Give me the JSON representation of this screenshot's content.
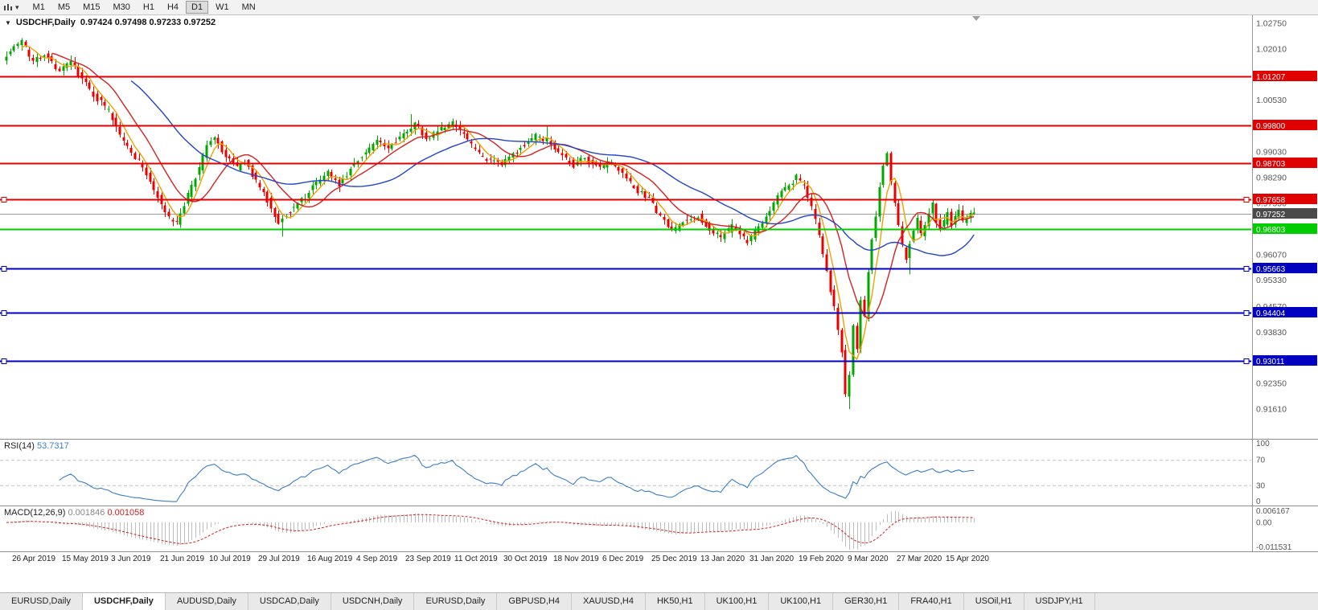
{
  "icons": {
    "symbol_marker": "▼",
    "chart_type_caret": "▾"
  },
  "toolbar": {
    "timeframes": [
      "M1",
      "M5",
      "M15",
      "M30",
      "H1",
      "H4",
      "D1",
      "W1",
      "MN"
    ],
    "active": "D1"
  },
  "chart": {
    "title": "USDCHF,Daily",
    "ohlc": "0.97424 0.97498 0.97233 0.97252",
    "current": {
      "price": 0.97252,
      "label": "0.97252",
      "line_color": "#9a9a9a",
      "badge_color": "#4a4a4a"
    },
    "axis_ticks": [
      "1.02750",
      "1.02010",
      "1.00530",
      "0.99030",
      "0.98290",
      "0.97550",
      "0.96070",
      "0.95330",
      "0.94570",
      "0.93830",
      "0.92350",
      "0.91610"
    ],
    "levels": [
      {
        "price": 1.01207,
        "label": "1.01207",
        "color": "#e00000",
        "width": 2,
        "handles": false
      },
      {
        "price": 0.998,
        "label": "0.99800",
        "color": "#e00000",
        "width": 2,
        "handles": false
      },
      {
        "price": 0.98703,
        "label": "0.98703",
        "color": "#e00000",
        "width": 2,
        "handles": false
      },
      {
        "price": 0.97658,
        "label": "0.97658",
        "color": "#e00000",
        "width": 2,
        "handles": true
      },
      {
        "price": 0.96803,
        "label": "0.96803",
        "color": "#00cc00",
        "width": 2,
        "handles": false
      },
      {
        "price": 0.95663,
        "label": "0.95663",
        "color": "#0000c0",
        "width": 2,
        "handles": true
      },
      {
        "price": 0.94404,
        "label": "0.94404",
        "color": "#0000c0",
        "width": 2,
        "handles": true
      },
      {
        "price": 0.93011,
        "label": "0.93011",
        "color": "#0000c0",
        "width": 2,
        "handles": true
      }
    ],
    "colors": {
      "up": "#00a800",
      "down": "#ea0000"
    },
    "chart_data": {
      "type": "candlestick",
      "symbol": "USDCHF",
      "timeframe": "Daily",
      "candle_count": 257,
      "price_anchors": [
        [
          0,
          1.0175
        ],
        [
          2,
          1.0195
        ],
        [
          5,
          1.0225
        ],
        [
          8,
          1.016
        ],
        [
          11,
          1.019
        ],
        [
          15,
          1.0135
        ],
        [
          18,
          1.016
        ],
        [
          21,
          1.0115
        ],
        [
          24,
          1.007
        ],
        [
          28,
          1.002
        ],
        [
          31,
          0.995
        ],
        [
          34,
          0.9905
        ],
        [
          37,
          0.986
        ],
        [
          41,
          0.9775
        ],
        [
          44,
          0.971
        ],
        [
          46,
          0.9695
        ],
        [
          49,
          0.978
        ],
        [
          52,
          0.9855
        ],
        [
          54,
          0.992
        ],
        [
          56,
          0.9945
        ],
        [
          59,
          0.989
        ],
        [
          62,
          0.9855
        ],
        [
          64,
          0.9875
        ],
        [
          67,
          0.982
        ],
        [
          70,
          0.9765
        ],
        [
          73,
          0.97
        ],
        [
          76,
          0.9735
        ],
        [
          80,
          0.9775
        ],
        [
          83,
          0.9815
        ],
        [
          86,
          0.9845
        ],
        [
          89,
          0.981
        ],
        [
          93,
          0.987
        ],
        [
          96,
          0.9905
        ],
        [
          99,
          0.9935
        ],
        [
          102,
          0.991
        ],
        [
          106,
          0.996
        ],
        [
          109,
          0.9985
        ],
        [
          112,
          0.994
        ],
        [
          115,
          0.9965
        ],
        [
          119,
          0.999
        ],
        [
          122,
          0.995
        ],
        [
          125,
          0.991
        ],
        [
          128,
          0.988
        ],
        [
          132,
          0.9865
        ],
        [
          135,
          0.9895
        ],
        [
          138,
          0.9925
        ],
        [
          141,
          0.995
        ],
        [
          145,
          0.993
        ],
        [
          148,
          0.9895
        ],
        [
          151,
          0.9865
        ],
        [
          154,
          0.9885
        ],
        [
          158,
          0.9855
        ],
        [
          161,
          0.9875
        ],
        [
          164,
          0.9835
        ],
        [
          167,
          0.98
        ],
        [
          171,
          0.9765
        ],
        [
          174,
          0.9715
        ],
        [
          177,
          0.9675
        ],
        [
          180,
          0.97
        ],
        [
          184,
          0.972
        ],
        [
          187,
          0.968
        ],
        [
          190,
          0.9655
        ],
        [
          193,
          0.969
        ],
        [
          197,
          0.9645
        ],
        [
          200,
          0.9685
        ],
        [
          203,
          0.974
        ],
        [
          206,
          0.979
        ],
        [
          210,
          0.983
        ],
        [
          212,
          0.98
        ],
        [
          214,
          0.9745
        ],
        [
          216,
          0.966
        ],
        [
          218,
          0.956
        ],
        [
          220,
          0.945
        ],
        [
          222,
          0.933
        ],
        [
          223,
          0.92
        ],
        [
          224,
          0.926
        ],
        [
          225,
          0.94
        ],
        [
          226,
          0.934
        ],
        [
          227,
          0.948
        ],
        [
          228,
          0.943
        ],
        [
          229,
          0.956
        ],
        [
          230,
          0.965
        ],
        [
          231,
          0.972
        ],
        [
          232,
          0.98
        ],
        [
          233,
          0.986
        ],
        [
          234,
          0.9895
        ],
        [
          235,
          0.982
        ],
        [
          236,
          0.975
        ],
        [
          237,
          0.969
        ],
        [
          238,
          0.963
        ],
        [
          239,
          0.959
        ],
        [
          240,
          0.964
        ],
        [
          241,
          0.968
        ],
        [
          242,
          0.971
        ],
        [
          243,
          0.9665
        ],
        [
          244,
          0.9695
        ],
        [
          245,
          0.9725
        ],
        [
          246,
          0.975
        ],
        [
          247,
          0.9705
        ],
        [
          248,
          0.968
        ],
        [
          249,
          0.97
        ],
        [
          250,
          0.973
        ],
        [
          251,
          0.969
        ],
        [
          252,
          0.9715
        ],
        [
          253,
          0.974
        ],
        [
          254,
          0.97
        ],
        [
          255,
          0.972
        ],
        [
          256,
          0.9725
        ]
      ],
      "wick_overrides": [
        {
          "i": 5,
          "high": 1.0226
        },
        {
          "i": 46,
          "low": 0.9693
        },
        {
          "i": 73,
          "low": 0.9659
        },
        {
          "i": 107,
          "high": 1.0013
        },
        {
          "i": 143,
          "high": 0.9979
        },
        {
          "i": 223,
          "low": 0.9161
        },
        {
          "i": 234,
          "high": 0.9901
        },
        {
          "i": 239,
          "low": 0.955
        }
      ],
      "moving_averages": [
        {
          "period": 5,
          "color": "#f0a000"
        },
        {
          "period": 13,
          "color": "#d42020"
        },
        {
          "period": 34,
          "color": "#2244cc"
        }
      ]
    }
  },
  "rsi": {
    "label": "RSI(14)",
    "value": "53.7317",
    "axis": [
      "100",
      "70",
      "30",
      "0"
    ],
    "upper": 70,
    "lower": 30,
    "color": "#3b7dc4"
  },
  "macd": {
    "label": "MACD(12,26,9)",
    "value_main": "0.001846",
    "value_signal": "0.001058",
    "axis_max_label": "0.006167",
    "axis_zero_label": "0.00",
    "axis_min_label": "-0.011531",
    "axis_max": 0.006167,
    "axis_min": -0.011531,
    "histogram_color": "#bdbdbd",
    "signal_color": "#d42020"
  },
  "dates": {
    "labels": [
      "26 Apr 2019",
      "15 May 2019",
      "3 Jun 2019",
      "21 Jun 2019",
      "10 Jul 2019",
      "29 Jul 2019",
      "16 Aug 2019",
      "4 Sep 2019",
      "23 Sep 2019",
      "11 Oct 2019",
      "30 Oct 2019",
      "18 Nov 2019",
      "6 Dec 2019",
      "25 Dec 2019",
      "13 Jan 2020",
      "31 Jan 2020",
      "19 Feb 2020",
      "9 Mar 2020",
      "27 Mar 2020",
      "15 Apr 2020"
    ],
    "first_index": 2,
    "index_step": 13
  },
  "tabs": {
    "items": [
      "EURUSD,Daily",
      "USDCHF,Daily",
      "AUDUSD,Daily",
      "USDCAD,Daily",
      "USDCNH,Daily",
      "EURUSD,Daily",
      "GBPUSD,H4",
      "XAUUSD,H4",
      "HK50,H1",
      "UK100,H1",
      "UK100,H1",
      "GER30,H1",
      "FRA40,H1",
      "USOil,H1",
      "USDJPY,H1"
    ],
    "active_index": 1
  }
}
